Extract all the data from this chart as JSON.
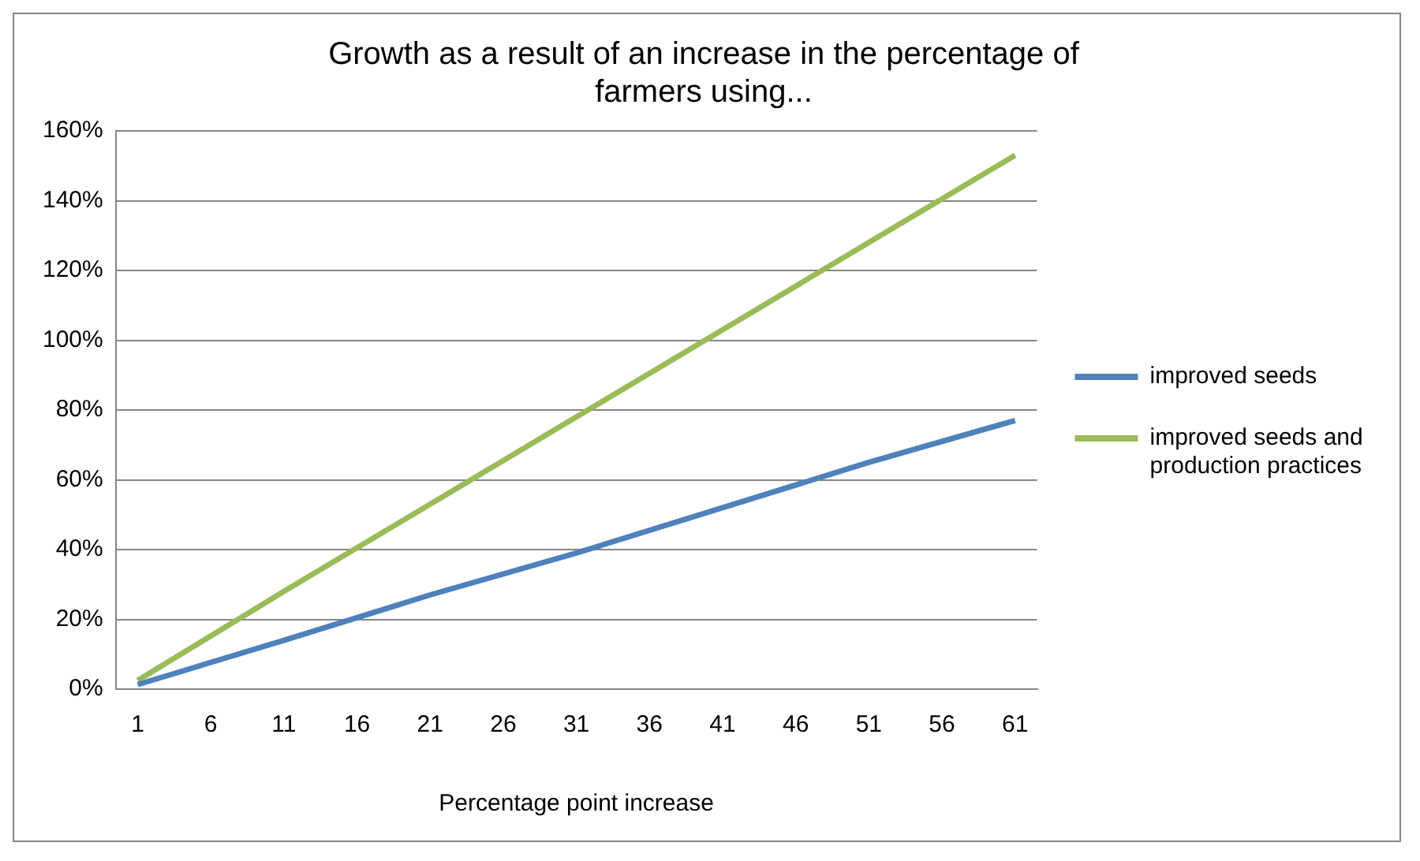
{
  "chart_data": {
    "type": "line",
    "title": "Growth as a result of an increase in the percentage of farmers using...",
    "xlabel": "Percentage point increase",
    "xlim": [
      -0.5,
      62.5
    ],
    "xticks": [
      1,
      6,
      11,
      16,
      21,
      26,
      31,
      36,
      41,
      46,
      51,
      56,
      61
    ],
    "ylim": [
      0,
      160
    ],
    "yticks": [
      {
        "value": 0,
        "label": "0%"
      },
      {
        "value": 20,
        "label": "20%"
      },
      {
        "value": 40,
        "label": "40%"
      },
      {
        "value": 60,
        "label": "60%"
      },
      {
        "value": 80,
        "label": "80%"
      },
      {
        "value": 100,
        "label": "100%"
      },
      {
        "value": 120,
        "label": "120%"
      },
      {
        "value": 140,
        "label": "140%"
      },
      {
        "value": 160,
        "label": "160%"
      }
    ],
    "grid": "y",
    "legend": "right",
    "marker": "none",
    "line_style": "solid",
    "series": [
      {
        "name": "improved seeds",
        "color": "#4f81bd",
        "x": [
          1,
          11,
          21,
          31,
          41,
          51,
          61
        ],
        "values": [
          1.3,
          14,
          27,
          39,
          52,
          65,
          77
        ]
      },
      {
        "name": "improved seeds and production practices",
        "color": "#9bbb59",
        "x": [
          1,
          11,
          21,
          31,
          41,
          51,
          61
        ],
        "values": [
          2.5,
          28,
          53,
          78,
          103,
          128,
          153
        ]
      }
    ]
  }
}
